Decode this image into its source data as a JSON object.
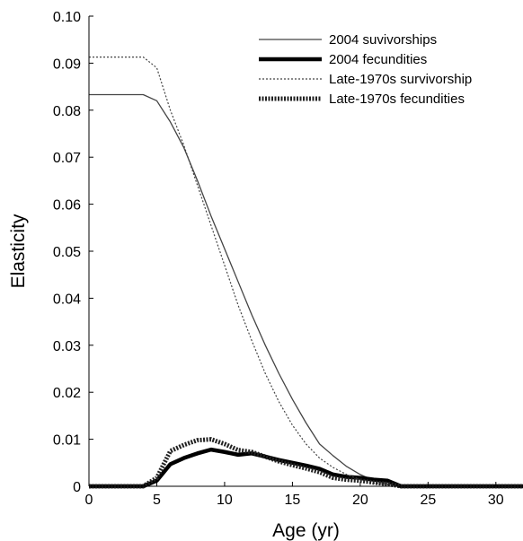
{
  "chart_data": {
    "type": "line",
    "title": "",
    "xlabel": "Age (yr)",
    "ylabel": "Elasticity",
    "xlim": [
      0,
      32
    ],
    "ylim": [
      0,
      0.1
    ],
    "xticks": [
      0,
      5,
      10,
      15,
      20,
      25,
      30
    ],
    "yticks": [
      0,
      0.01,
      0.02,
      0.03,
      0.04,
      0.05,
      0.06,
      0.07,
      0.08,
      0.09,
      0.1
    ],
    "ytick_labels": [
      "0",
      "0.01",
      "0.02",
      "0.03",
      "0.04",
      "0.05",
      "0.06",
      "0.07",
      "0.08",
      "0.09",
      "0.10"
    ],
    "grid": false,
    "legend_position": "top-right",
    "series": [
      {
        "name": "2004 suvivorships",
        "style": "thin-solid",
        "x": [
          0,
          1,
          2,
          3,
          4,
          5,
          6,
          7,
          8,
          9,
          10,
          11,
          12,
          13,
          14,
          15,
          16,
          17,
          18,
          19,
          20,
          21,
          22,
          23,
          24,
          25,
          26,
          27,
          28,
          29,
          30,
          31,
          32
        ],
        "y": [
          0.0833,
          0.0833,
          0.0833,
          0.0833,
          0.0833,
          0.082,
          0.0775,
          0.072,
          0.065,
          0.0575,
          0.0505,
          0.0435,
          0.0365,
          0.03,
          0.024,
          0.0185,
          0.0135,
          0.009,
          0.0065,
          0.0042,
          0.0025,
          0.0012,
          0.0005,
          0,
          0,
          0,
          0,
          0,
          0,
          0,
          0,
          0,
          0
        ]
      },
      {
        "name": "2004 fecundities",
        "style": "thick-solid",
        "x": [
          0,
          1,
          2,
          3,
          4,
          5,
          6,
          7,
          8,
          9,
          10,
          11,
          12,
          13,
          14,
          15,
          16,
          17,
          18,
          19,
          20,
          21,
          22,
          23,
          24,
          25,
          26,
          27,
          28,
          29,
          30,
          31,
          32
        ],
        "y": [
          0,
          0,
          0,
          0,
          0,
          0.0012,
          0.0047,
          0.006,
          0.007,
          0.0078,
          0.0073,
          0.0067,
          0.007,
          0.0063,
          0.0056,
          0.005,
          0.0044,
          0.0037,
          0.0025,
          0.002,
          0.0018,
          0.0014,
          0.0012,
          0,
          0,
          0,
          0,
          0,
          0,
          0,
          0,
          0,
          0
        ]
      },
      {
        "name": "Late-1970s survivorship",
        "style": "thin-dotted",
        "x": [
          0,
          1,
          2,
          3,
          4,
          5,
          6,
          7,
          8,
          9,
          10,
          11,
          12,
          13,
          14,
          15,
          16,
          17,
          18,
          19,
          20,
          21,
          22,
          23,
          24,
          25,
          26,
          27,
          28,
          29,
          30,
          31,
          32
        ],
        "y": [
          0.0913,
          0.0913,
          0.0913,
          0.0913,
          0.0913,
          0.089,
          0.08,
          0.0725,
          0.064,
          0.0555,
          0.047,
          0.0385,
          0.031,
          0.024,
          0.018,
          0.013,
          0.009,
          0.006,
          0.004,
          0.0025,
          0.0014,
          0.0007,
          0.0003,
          0,
          0,
          0,
          0,
          0,
          0,
          0,
          0,
          0,
          0
        ]
      },
      {
        "name": "Late-1970s fecundities",
        "style": "thick-dotted",
        "x": [
          0,
          1,
          2,
          3,
          4,
          5,
          6,
          7,
          8,
          9,
          10,
          11,
          12,
          13,
          14,
          15,
          16,
          17,
          18,
          19,
          20,
          21,
          22,
          23,
          24,
          25,
          26,
          27,
          28,
          29,
          30,
          31,
          32
        ],
        "y": [
          0,
          0,
          0,
          0,
          0,
          0.0018,
          0.0075,
          0.0088,
          0.0098,
          0.01,
          0.009,
          0.0077,
          0.0073,
          0.0063,
          0.0053,
          0.0045,
          0.0038,
          0.003,
          0.0018,
          0.0014,
          0.0012,
          0.0008,
          0.0005,
          0,
          0,
          0,
          0,
          0,
          0,
          0,
          0,
          0,
          0
        ]
      }
    ]
  }
}
